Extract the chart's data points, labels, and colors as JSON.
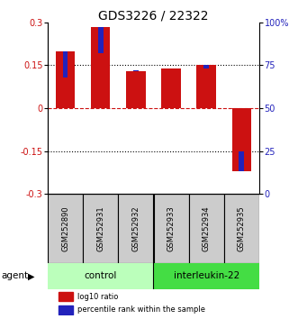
{
  "title": "GDS3226 / 22322",
  "samples": [
    "GSM252890",
    "GSM252931",
    "GSM252932",
    "GSM252933",
    "GSM252934",
    "GSM252935"
  ],
  "log10_ratio": [
    0.2,
    0.285,
    0.13,
    0.14,
    0.15,
    -0.22
  ],
  "percentile_rank": [
    68,
    82,
    72,
    73,
    73,
    25
  ],
  "ylim_left": [
    -0.3,
    0.3
  ],
  "ylim_right": [
    0,
    100
  ],
  "yticks_left": [
    -0.3,
    -0.15,
    0,
    0.15,
    0.3
  ],
  "yticks_right": [
    0,
    25,
    50,
    75,
    100
  ],
  "ytick_labels_left": [
    "-0.3",
    "-0.15",
    "0",
    "0.15",
    "0.3"
  ],
  "ytick_labels_right": [
    "0",
    "25",
    "50",
    "75",
    "100%"
  ],
  "hlines_dotted": [
    -0.15,
    0.15
  ],
  "hline_dashed": 0,
  "red_color": "#cc1111",
  "blue_color": "#2222bb",
  "control_label": "control",
  "treatment_label": "interleukin-22",
  "control_color": "#bbffbb",
  "treatment_color": "#44dd44",
  "agent_label": "agent",
  "legend_red": "log10 ratio",
  "legend_blue": "percentile rank within the sample",
  "bar_box_color": "#cccccc",
  "title_fontsize": 10,
  "axis_fontsize": 7.5,
  "tick_fontsize": 7,
  "sample_fontsize": 6,
  "legend_fontsize": 6
}
